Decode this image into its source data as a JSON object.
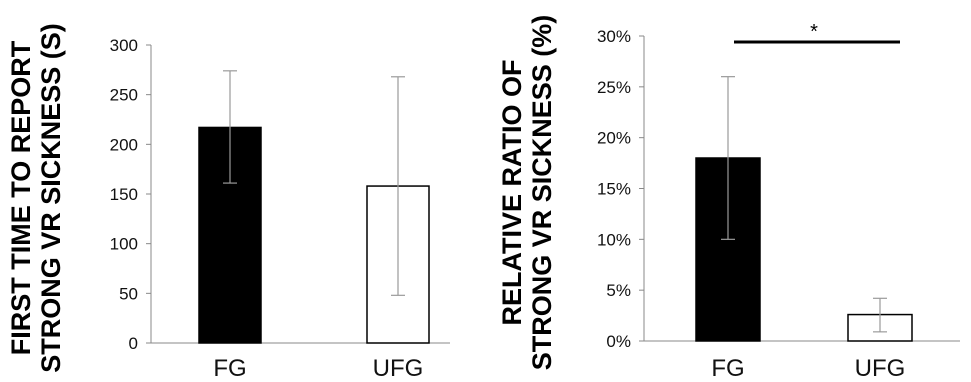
{
  "chart_data": [
    {
      "type": "bar",
      "ylabel_lines": [
        "FIRST TIME TO REPORT",
        "STRONG VR SICKNESS (S)"
      ],
      "categories": [
        "FG",
        "UFG"
      ],
      "values": [
        217,
        158
      ],
      "error_low": [
        161,
        48
      ],
      "error_high": [
        274,
        268
      ],
      "bar_colors": [
        "#000000",
        "#ffffff"
      ],
      "ylim": [
        0,
        300
      ],
      "yticks": [
        0,
        50,
        100,
        150,
        200,
        250,
        300
      ],
      "ytick_labels": [
        "0",
        "50",
        "100",
        "150",
        "200",
        "250",
        "300"
      ],
      "grid": false,
      "significance": null
    },
    {
      "type": "bar",
      "ylabel_lines": [
        "RELATIVE RATIO OF",
        "STRONG VR SICKNESS (%)"
      ],
      "categories": [
        "FG",
        "UFG"
      ],
      "values": [
        18,
        2.6
      ],
      "error_low": [
        10,
        0.9
      ],
      "error_high": [
        26,
        4.2
      ],
      "bar_colors": [
        "#000000",
        "#ffffff"
      ],
      "ylim": [
        0,
        30
      ],
      "yticks": [
        0,
        5,
        10,
        15,
        20,
        25,
        30
      ],
      "ytick_labels": [
        "0%",
        "5%",
        "10%",
        "15%",
        "20%",
        "25%",
        "30%"
      ],
      "grid": false,
      "significance": "*"
    }
  ]
}
